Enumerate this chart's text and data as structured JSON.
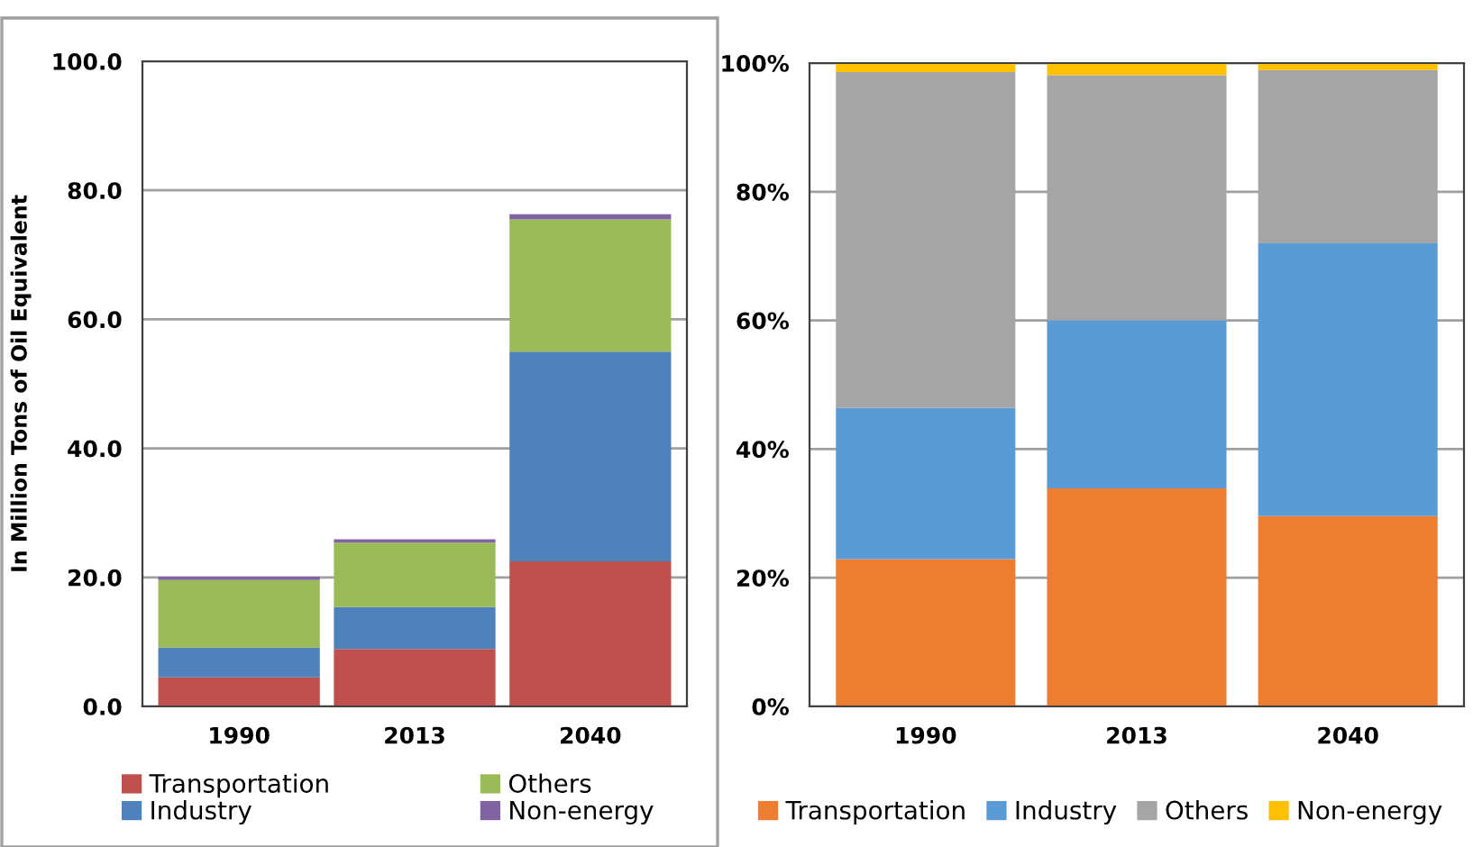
{
  "chart_data": [
    {
      "type": "bar",
      "stacked": true,
      "ylabel": "In Million Tons of Oil Equivalent",
      "categories": [
        "1990",
        "2013",
        "2040"
      ],
      "series": [
        {
          "name": "Transportation",
          "color": "#c0504d",
          "values": [
            4.5,
            8.9,
            22.5
          ]
        },
        {
          "name": "Industry",
          "color": "#4f81bd",
          "values": [
            4.6,
            6.5,
            32.5
          ]
        },
        {
          "name": "Others",
          "color": "#9bbb59",
          "values": [
            10.5,
            10.0,
            20.5
          ]
        },
        {
          "name": "Non-energy",
          "color": "#8064a2",
          "values": [
            0.5,
            0.5,
            0.8
          ]
        }
      ],
      "ylim": [
        0,
        100
      ],
      "yticks": [
        {
          "value": 0,
          "label": "0.0"
        },
        {
          "value": 20,
          "label": "20.0"
        },
        {
          "value": 40,
          "label": "40.0"
        },
        {
          "value": 60,
          "label": "60.0"
        },
        {
          "value": 80,
          "label": "80.0"
        },
        {
          "value": 100,
          "label": "100.0"
        }
      ],
      "grid": "y",
      "legend": "bottom"
    },
    {
      "type": "bar",
      "stacked": true,
      "categories": [
        "1990",
        "2013",
        "2040"
      ],
      "series": [
        {
          "name": "Transportation",
          "color": "#ed7d31",
          "values": [
            22.9,
            33.9,
            29.6
          ]
        },
        {
          "name": "Industry",
          "color": "#5b9bd5",
          "values": [
            23.5,
            26.1,
            42.4
          ]
        },
        {
          "name": "Others",
          "color": "#a5a5a5",
          "values": [
            52.2,
            38.1,
            26.9
          ]
        },
        {
          "name": "Non-energy",
          "color": "#ffc000",
          "values": [
            1.4,
            1.9,
            1.1
          ]
        }
      ],
      "ylim": [
        0,
        100
      ],
      "yticks": [
        {
          "value": 0,
          "label": "0%"
        },
        {
          "value": 20,
          "label": "20%"
        },
        {
          "value": 40,
          "label": "40%"
        },
        {
          "value": 60,
          "label": "60%"
        },
        {
          "value": 80,
          "label": "80%"
        },
        {
          "value": 100,
          "label": "100%"
        }
      ],
      "grid": "y",
      "legend": "bottom"
    }
  ]
}
